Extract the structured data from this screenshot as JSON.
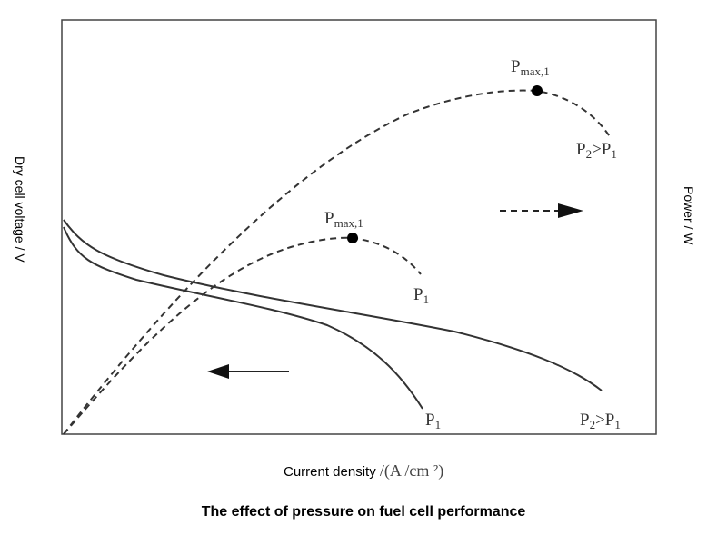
{
  "title": "The effect of pressure on fuel cell performance",
  "x_axis": {
    "label": "Current density",
    "unit": "/(A /cm ²)"
  },
  "y_axis_left": {
    "label": "Dry cell voltage / V"
  },
  "y_axis_right": {
    "label": "Power / W"
  },
  "curve_labels": {
    "voltage_p1": "P1",
    "voltage_p2": "P2>P1",
    "power_p1": "P1",
    "power_p2": "P2>P1",
    "pmax_p1": "Pmax,1",
    "pmax_p2": "Pmax,1"
  },
  "line_color": "#333333"
}
